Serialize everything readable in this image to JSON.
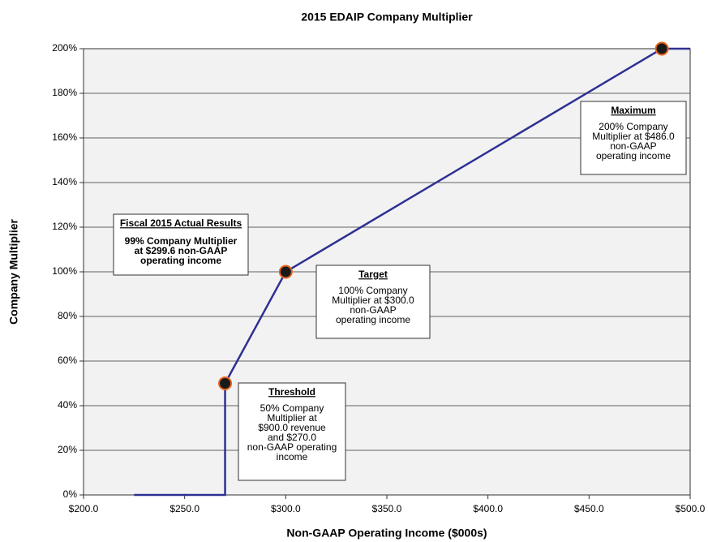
{
  "chart_data": {
    "type": "line",
    "title": "2015 EDAIP Company Multiplier",
    "x_label": "Non-GAAP Operating Income ($000s)",
    "y_label": "Company Multiplier",
    "xlim": [
      200,
      500
    ],
    "ylim": [
      0,
      200
    ],
    "xticks": [
      {
        "value": 200,
        "label": "$200.0"
      },
      {
        "value": 250,
        "label": "$250.0"
      },
      {
        "value": 300,
        "label": "$300.0"
      },
      {
        "value": 350,
        "label": "$350.0"
      },
      {
        "value": 400,
        "label": "$400.0"
      },
      {
        "value": 450,
        "label": "$450.0"
      },
      {
        "value": 500,
        "label": "$500.0"
      }
    ],
    "yticks": [
      {
        "value": 0,
        "label": "0%"
      },
      {
        "value": 20,
        "label": "20%"
      },
      {
        "value": 40,
        "label": "40%"
      },
      {
        "value": 60,
        "label": "60%"
      },
      {
        "value": 80,
        "label": "80%"
      },
      {
        "value": 100,
        "label": "100%"
      },
      {
        "value": 120,
        "label": "120%"
      },
      {
        "value": 140,
        "label": "140%"
      },
      {
        "value": 160,
        "label": "160%"
      },
      {
        "value": 180,
        "label": "180%"
      },
      {
        "value": 200,
        "label": "200%"
      }
    ],
    "grid": true,
    "series": [
      {
        "style": "line",
        "color": "#2e3192",
        "x": [
          225,
          270,
          270,
          300,
          486,
          500
        ],
        "values": [
          0,
          0,
          50,
          100,
          200,
          200
        ]
      },
      {
        "style": "markers",
        "color": "#1a1a1a",
        "edge_color": "#e8641b",
        "x": [
          270,
          300,
          486
        ],
        "values": [
          50,
          100,
          200
        ]
      }
    ],
    "annotations": [
      {
        "title": "Fiscal 2015 Actual Results",
        "lines": [
          "99% Company Multiplier",
          "at $299.6 non-GAAP",
          "operating income"
        ]
      },
      {
        "title": "Target",
        "lines": [
          "100% Company",
          "Multiplier at $300.0",
          "non-GAAP",
          "operating income"
        ]
      },
      {
        "title": "Threshold",
        "lines": [
          "50% Company",
          "Multiplier at",
          "$900.0 revenue",
          "and $270.0",
          "non-GAAP operating",
          "income"
        ]
      },
      {
        "title": "Maximum",
        "lines": [
          "200% Company",
          "Multiplier at $486.0",
          "non-GAAP",
          "operating income"
        ]
      }
    ]
  }
}
